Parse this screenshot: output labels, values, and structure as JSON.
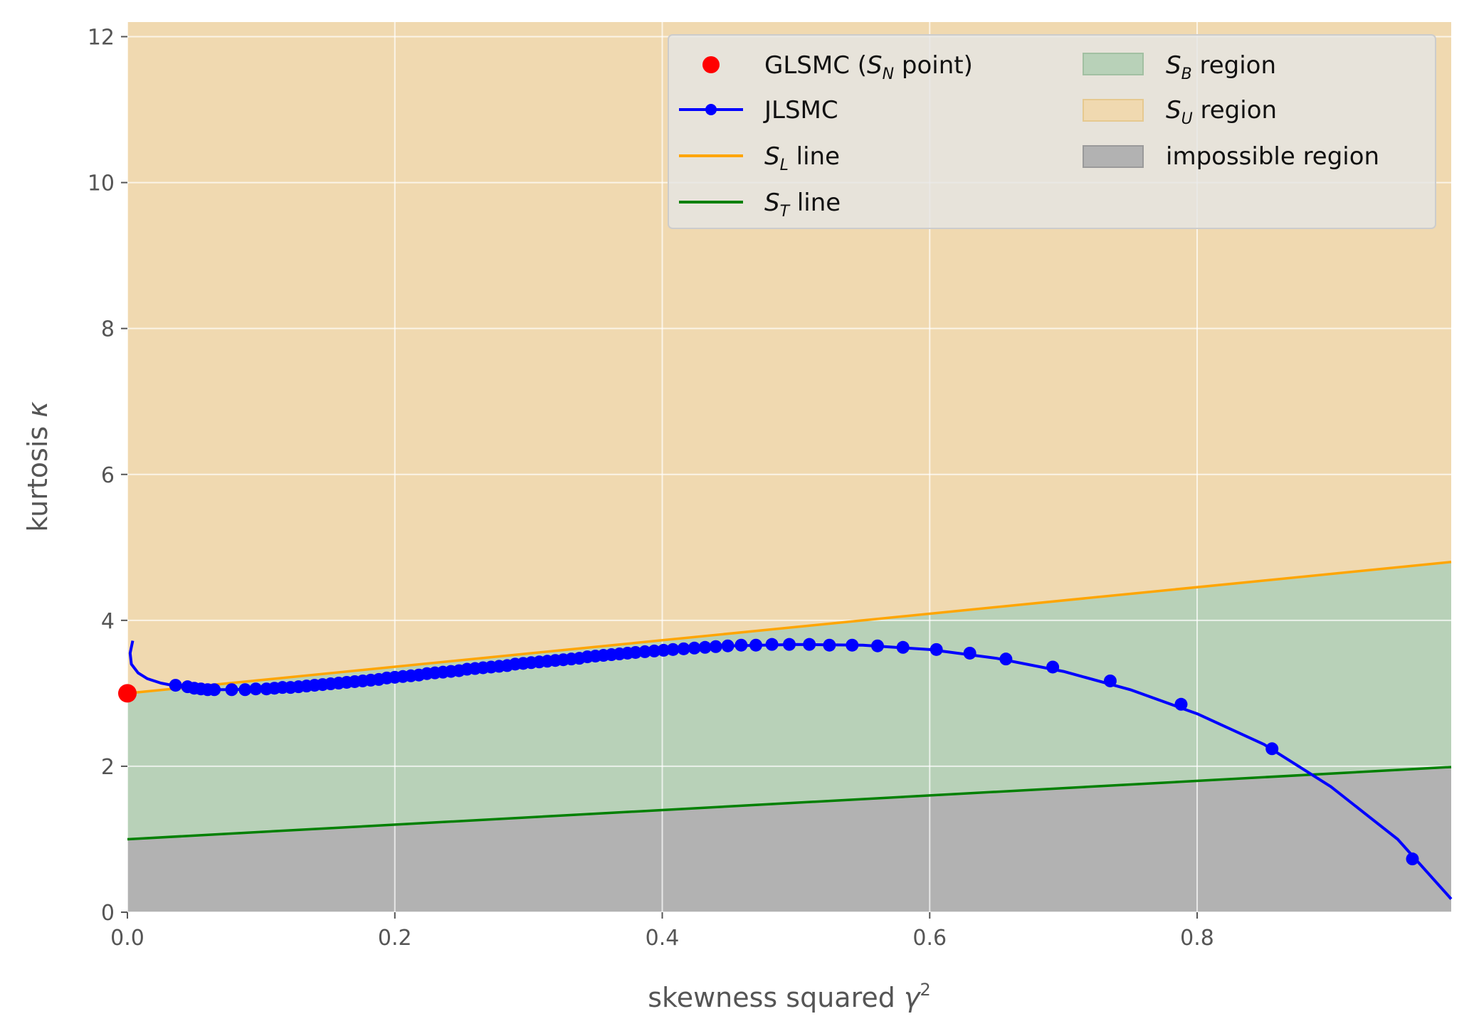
{
  "chart_data": {
    "type": "line",
    "xlabel_text": "skewness squared",
    "xlabel_symbol": "γ",
    "xlabel_sup": "2",
    "ylabel_text": "kurtosis",
    "ylabel_symbol": "κ",
    "xlim": [
      0.0,
      0.99
    ],
    "ylim": [
      0,
      12.2
    ],
    "x_ticks": [
      0.0,
      0.2,
      0.4,
      0.6,
      0.8
    ],
    "x_tick_labels": [
      "0.0",
      "0.2",
      "0.4",
      "0.6",
      "0.8"
    ],
    "y_ticks": [
      0,
      2,
      4,
      6,
      8,
      10,
      12
    ],
    "y_tick_labels": [
      "0",
      "2",
      "4",
      "6",
      "8",
      "10",
      "12"
    ],
    "grid": true,
    "legend_position": "top-right",
    "colors": {
      "background": "#e5e5e5",
      "grid": "#ffffff",
      "su_region": "#f0d9b0",
      "sb_region": "#b8d1b8",
      "impossible_region": "#b2b2b2",
      "sl_line": "#ffa500",
      "st_line": "#008000",
      "jlsmc": "#0000ff",
      "glsmc": "#ff0000"
    },
    "regions": [
      {
        "name": "S_B region",
        "from": "S_T line",
        "to": "S_L line"
      },
      {
        "name": "S_U region",
        "from": "S_L line",
        "to": "top"
      },
      {
        "name": "impossible region",
        "from": "bottom",
        "to": "S_T line"
      }
    ],
    "lines": {
      "sl": {
        "x": [
          0.0,
          0.99
        ],
        "y": [
          3.0,
          4.8
        ]
      },
      "st": {
        "x": [
          0.0,
          0.99
        ],
        "y": [
          1.0,
          1.99
        ]
      }
    },
    "glsmc_point": {
      "x": 0.0,
      "y": 3.0
    },
    "jlsmc_curve": {
      "x": [
        0.004,
        0.002,
        0.003,
        0.008,
        0.015,
        0.025,
        0.036,
        0.05,
        0.065,
        0.08,
        0.1,
        0.15,
        0.2,
        0.25,
        0.3,
        0.35,
        0.4,
        0.45,
        0.5,
        0.55,
        0.6,
        0.65,
        0.7,
        0.75,
        0.8,
        0.85,
        0.9,
        0.95,
        0.99
      ],
      "y": [
        3.72,
        3.55,
        3.4,
        3.28,
        3.2,
        3.14,
        3.1,
        3.07,
        3.05,
        3.05,
        3.07,
        3.14,
        3.23,
        3.33,
        3.44,
        3.54,
        3.61,
        3.65,
        3.67,
        3.66,
        3.6,
        3.48,
        3.3,
        3.05,
        2.72,
        2.3,
        1.72,
        1.0,
        0.18
      ]
    },
    "jlsmc_markers": {
      "x": [
        0.036,
        0.045,
        0.05,
        0.055,
        0.06,
        0.065,
        0.078,
        0.088,
        0.096,
        0.104,
        0.11,
        0.116,
        0.122,
        0.128,
        0.134,
        0.14,
        0.146,
        0.152,
        0.158,
        0.164,
        0.17,
        0.176,
        0.182,
        0.188,
        0.194,
        0.2,
        0.206,
        0.212,
        0.218,
        0.224,
        0.23,
        0.236,
        0.242,
        0.248,
        0.254,
        0.26,
        0.266,
        0.272,
        0.278,
        0.284,
        0.29,
        0.296,
        0.302,
        0.308,
        0.314,
        0.32,
        0.326,
        0.332,
        0.338,
        0.344,
        0.35,
        0.356,
        0.362,
        0.368,
        0.374,
        0.38,
        0.387,
        0.394,
        0.401,
        0.408,
        0.416,
        0.424,
        0.432,
        0.44,
        0.449,
        0.459,
        0.47,
        0.482,
        0.495,
        0.51,
        0.525,
        0.542,
        0.561,
        0.58,
        0.605,
        0.63,
        0.657,
        0.692,
        0.735,
        0.788,
        0.856,
        0.961
      ],
      "y": [
        3.11,
        3.09,
        3.07,
        3.06,
        3.05,
        3.05,
        3.05,
        3.05,
        3.06,
        3.06,
        3.07,
        3.08,
        3.08,
        3.09,
        3.1,
        3.11,
        3.12,
        3.13,
        3.14,
        3.15,
        3.16,
        3.17,
        3.18,
        3.19,
        3.21,
        3.22,
        3.23,
        3.24,
        3.25,
        3.27,
        3.28,
        3.29,
        3.3,
        3.31,
        3.33,
        3.34,
        3.35,
        3.36,
        3.37,
        3.38,
        3.4,
        3.41,
        3.42,
        3.43,
        3.44,
        3.45,
        3.46,
        3.47,
        3.48,
        3.5,
        3.51,
        3.52,
        3.53,
        3.54,
        3.55,
        3.56,
        3.57,
        3.58,
        3.59,
        3.6,
        3.61,
        3.62,
        3.63,
        3.64,
        3.65,
        3.66,
        3.66,
        3.67,
        3.67,
        3.67,
        3.66,
        3.66,
        3.65,
        3.63,
        3.6,
        3.55,
        3.47,
        3.36,
        3.17,
        2.85,
        2.24,
        0.73
      ]
    },
    "legend": {
      "glsmc_label_prefix": "GLSMC (",
      "glsmc_label_symbol": "S",
      "glsmc_label_sub": "N",
      "glsmc_label_suffix": " point)",
      "jlsmc_label": "JLSMC",
      "sl_symbol": "S",
      "sl_sub": "L",
      "sl_suffix": " line",
      "st_symbol": "S",
      "st_sub": "T",
      "st_suffix": " line",
      "sb_symbol": "S",
      "sb_sub": "B",
      "sb_suffix": " region",
      "su_symbol": "S",
      "su_sub": "U",
      "su_suffix": " region",
      "impossible_label": "impossible region"
    }
  }
}
